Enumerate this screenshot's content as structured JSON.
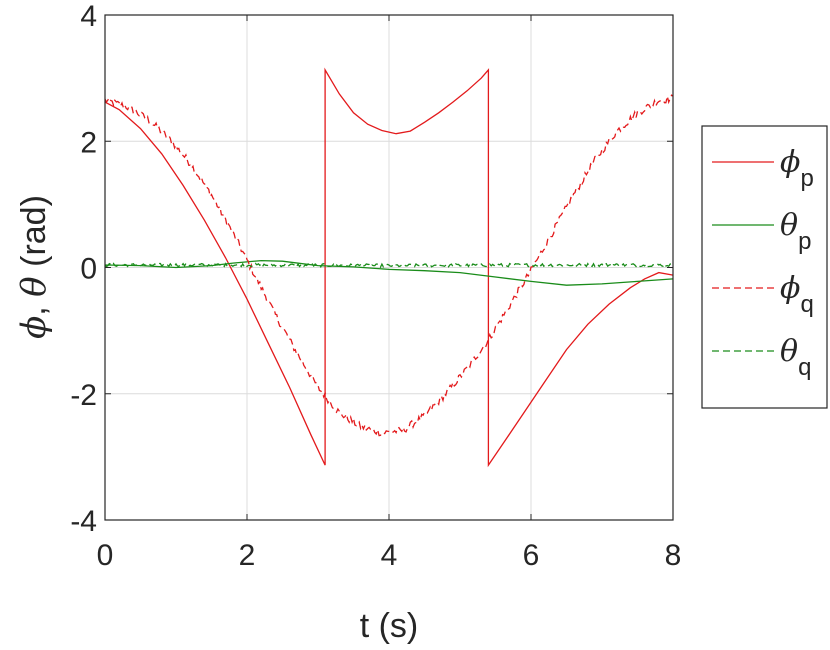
{
  "chart_data": {
    "type": "line",
    "xlabel": "t (s)",
    "ylabel_parts": {
      "sym1": "ϕ",
      "sep": ", ",
      "sym2": "θ",
      "unit": " (rad)"
    },
    "xlim": [
      0,
      8
    ],
    "ylim": [
      -4,
      4
    ],
    "x_ticks": [
      "0",
      "2",
      "4",
      "6",
      "8"
    ],
    "y_ticks": [
      "4",
      "2",
      "0",
      "-2",
      "-4"
    ],
    "grid": true,
    "legend_position": "outside-right",
    "series": [
      {
        "name": "ϕp",
        "symbol": "ϕ",
        "subscript": "p",
        "color": "#e31a1c",
        "style": "solid",
        "noise": 0,
        "x": [
          0,
          0.2,
          0.5,
          0.8,
          1.1,
          1.4,
          1.7,
          2.0,
          2.3,
          2.6,
          2.9,
          3.1,
          3.1,
          3.3,
          3.5,
          3.7,
          3.9,
          4.1,
          4.3,
          4.5,
          4.7,
          4.9,
          5.1,
          5.3,
          5.4,
          5.4,
          5.6,
          5.9,
          6.2,
          6.5,
          6.8,
          7.1,
          7.4,
          7.6,
          7.8,
          8.0
        ],
        "y": [
          2.62,
          2.5,
          2.2,
          1.8,
          1.3,
          0.75,
          0.15,
          -0.5,
          -1.2,
          -1.9,
          -2.65,
          -3.13,
          3.13,
          2.75,
          2.45,
          2.27,
          2.17,
          2.12,
          2.16,
          2.3,
          2.45,
          2.62,
          2.8,
          3.0,
          3.13,
          -3.13,
          -2.8,
          -2.3,
          -1.8,
          -1.3,
          -0.9,
          -0.58,
          -0.32,
          -0.18,
          -0.08,
          -0.12
        ]
      },
      {
        "name": "θp",
        "symbol": "θ",
        "subscript": "p",
        "color": "#1a8c1a",
        "style": "solid",
        "noise": 0,
        "x": [
          0,
          0.5,
          1.0,
          1.5,
          1.8,
          2.2,
          2.5,
          3.0,
          3.5,
          4.0,
          4.5,
          5.0,
          5.5,
          6.0,
          6.5,
          7.0,
          7.5,
          8.0
        ],
        "y": [
          0.04,
          0.03,
          0.0,
          0.03,
          0.07,
          0.11,
          0.1,
          0.03,
          0.01,
          -0.03,
          -0.05,
          -0.08,
          -0.15,
          -0.22,
          -0.28,
          -0.26,
          -0.22,
          -0.18
        ]
      },
      {
        "name": "ϕq",
        "symbol": "ϕ",
        "subscript": "q",
        "color": "#e31a1c",
        "style": "dashed",
        "noise": 0.06,
        "x": [
          0,
          0.3,
          0.6,
          0.9,
          1.2,
          1.5,
          1.8,
          2.1,
          2.4,
          2.7,
          3.0,
          3.3,
          3.6,
          3.9,
          4.2,
          4.5,
          4.8,
          5.1,
          5.4,
          5.7,
          6.0,
          6.3,
          6.6,
          6.9,
          7.2,
          7.5,
          7.8,
          8.0
        ],
        "y": [
          2.65,
          2.55,
          2.35,
          2.05,
          1.65,
          1.15,
          0.55,
          -0.1,
          -0.75,
          -1.35,
          -1.9,
          -2.3,
          -2.52,
          -2.62,
          -2.58,
          -2.35,
          -2.0,
          -1.6,
          -1.15,
          -0.6,
          -0.05,
          0.55,
          1.15,
          1.7,
          2.15,
          2.45,
          2.65,
          2.68
        ]
      },
      {
        "name": "θq",
        "symbol": "θ",
        "subscript": "q",
        "color": "#1a8c1a",
        "style": "dashed",
        "noise": 0.025,
        "x": [
          0,
          2,
          4,
          6,
          8
        ],
        "y": [
          0.04,
          0.04,
          0.03,
          0.04,
          0.04
        ]
      }
    ]
  }
}
